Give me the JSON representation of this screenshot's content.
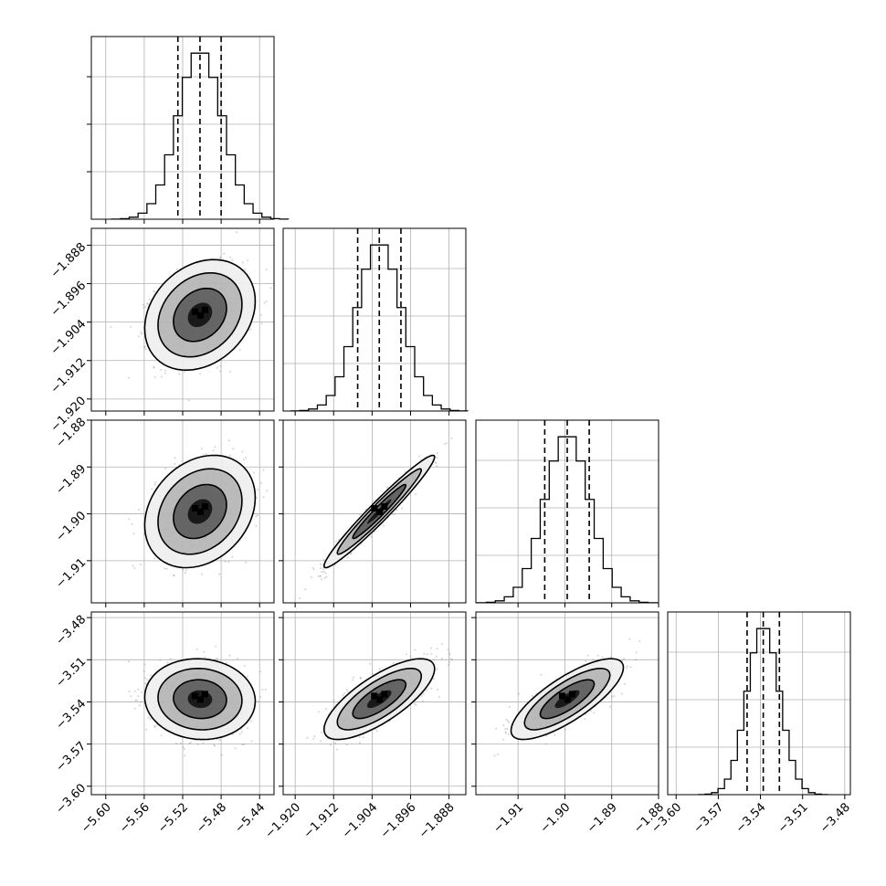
{
  "chart_data": {
    "type": "corner",
    "parameters": 4,
    "grid": true,
    "histogram_quantile_lines": 3,
    "axes": [
      {
        "index": 0,
        "range": [
          -5.615,
          -5.425
        ],
        "ticks": [
          -5.6,
          -5.56,
          -5.52,
          -5.48,
          -5.44
        ],
        "tick_labels": [
          "−5.60",
          "−5.56",
          "−5.52",
          "−5.48",
          "−5.44"
        ],
        "mean": -5.502,
        "sd": 0.023,
        "quantiles": [
          -5.525,
          -5.502,
          -5.48
        ]
      },
      {
        "index": 1,
        "range": [
          -1.9225,
          -1.8845
        ],
        "ticks": [
          -1.92,
          -1.912,
          -1.904,
          -1.896,
          -1.888
        ],
        "tick_labels": [
          "−1.920",
          "−1.912",
          "−1.904",
          "−1.896",
          "−1.888"
        ],
        "mean": -1.9025,
        "sd": 0.0046,
        "quantiles": [
          -1.907,
          -1.9025,
          -1.898
        ]
      },
      {
        "index": 2,
        "range": [
          -1.919,
          -1.88
        ],
        "ticks": [
          -1.91,
          -1.9,
          -1.89,
          -1.88
        ],
        "tick_labels": [
          "−1.91",
          "−1.90",
          "−1.89",
          "−1.88"
        ],
        "mean": -1.8995,
        "sd": 0.0048,
        "quantiles": [
          -1.9043,
          -1.8995,
          -1.8948
        ]
      },
      {
        "index": 3,
        "range": [
          -3.606,
          -3.476
        ],
        "ticks": [
          -3.6,
          -3.57,
          -3.54,
          -3.51,
          -3.48
        ],
        "tick_labels": [
          "−3.60",
          "−3.57",
          "−3.54",
          "−3.51",
          "−3.48"
        ],
        "mean": -3.538,
        "sd": 0.0115,
        "quantiles": [
          -3.5495,
          -3.538,
          -3.5265
        ]
      }
    ],
    "correlations": [
      {
        "pair": [
          0,
          1
        ],
        "rho": 0.25
      },
      {
        "pair": [
          0,
          2
        ],
        "rho": 0.25
      },
      {
        "pair": [
          1,
          2
        ],
        "rho": 0.97
      },
      {
        "pair": [
          0,
          3
        ],
        "rho": -0.05
      },
      {
        "pair": [
          1,
          3
        ],
        "rho": 0.75
      },
      {
        "pair": [
          2,
          3
        ],
        "rho": 0.78
      }
    ],
    "colors": {
      "line": "#000000",
      "grid": "#b0b0b0",
      "points": "#808080",
      "density": "#000000"
    }
  }
}
